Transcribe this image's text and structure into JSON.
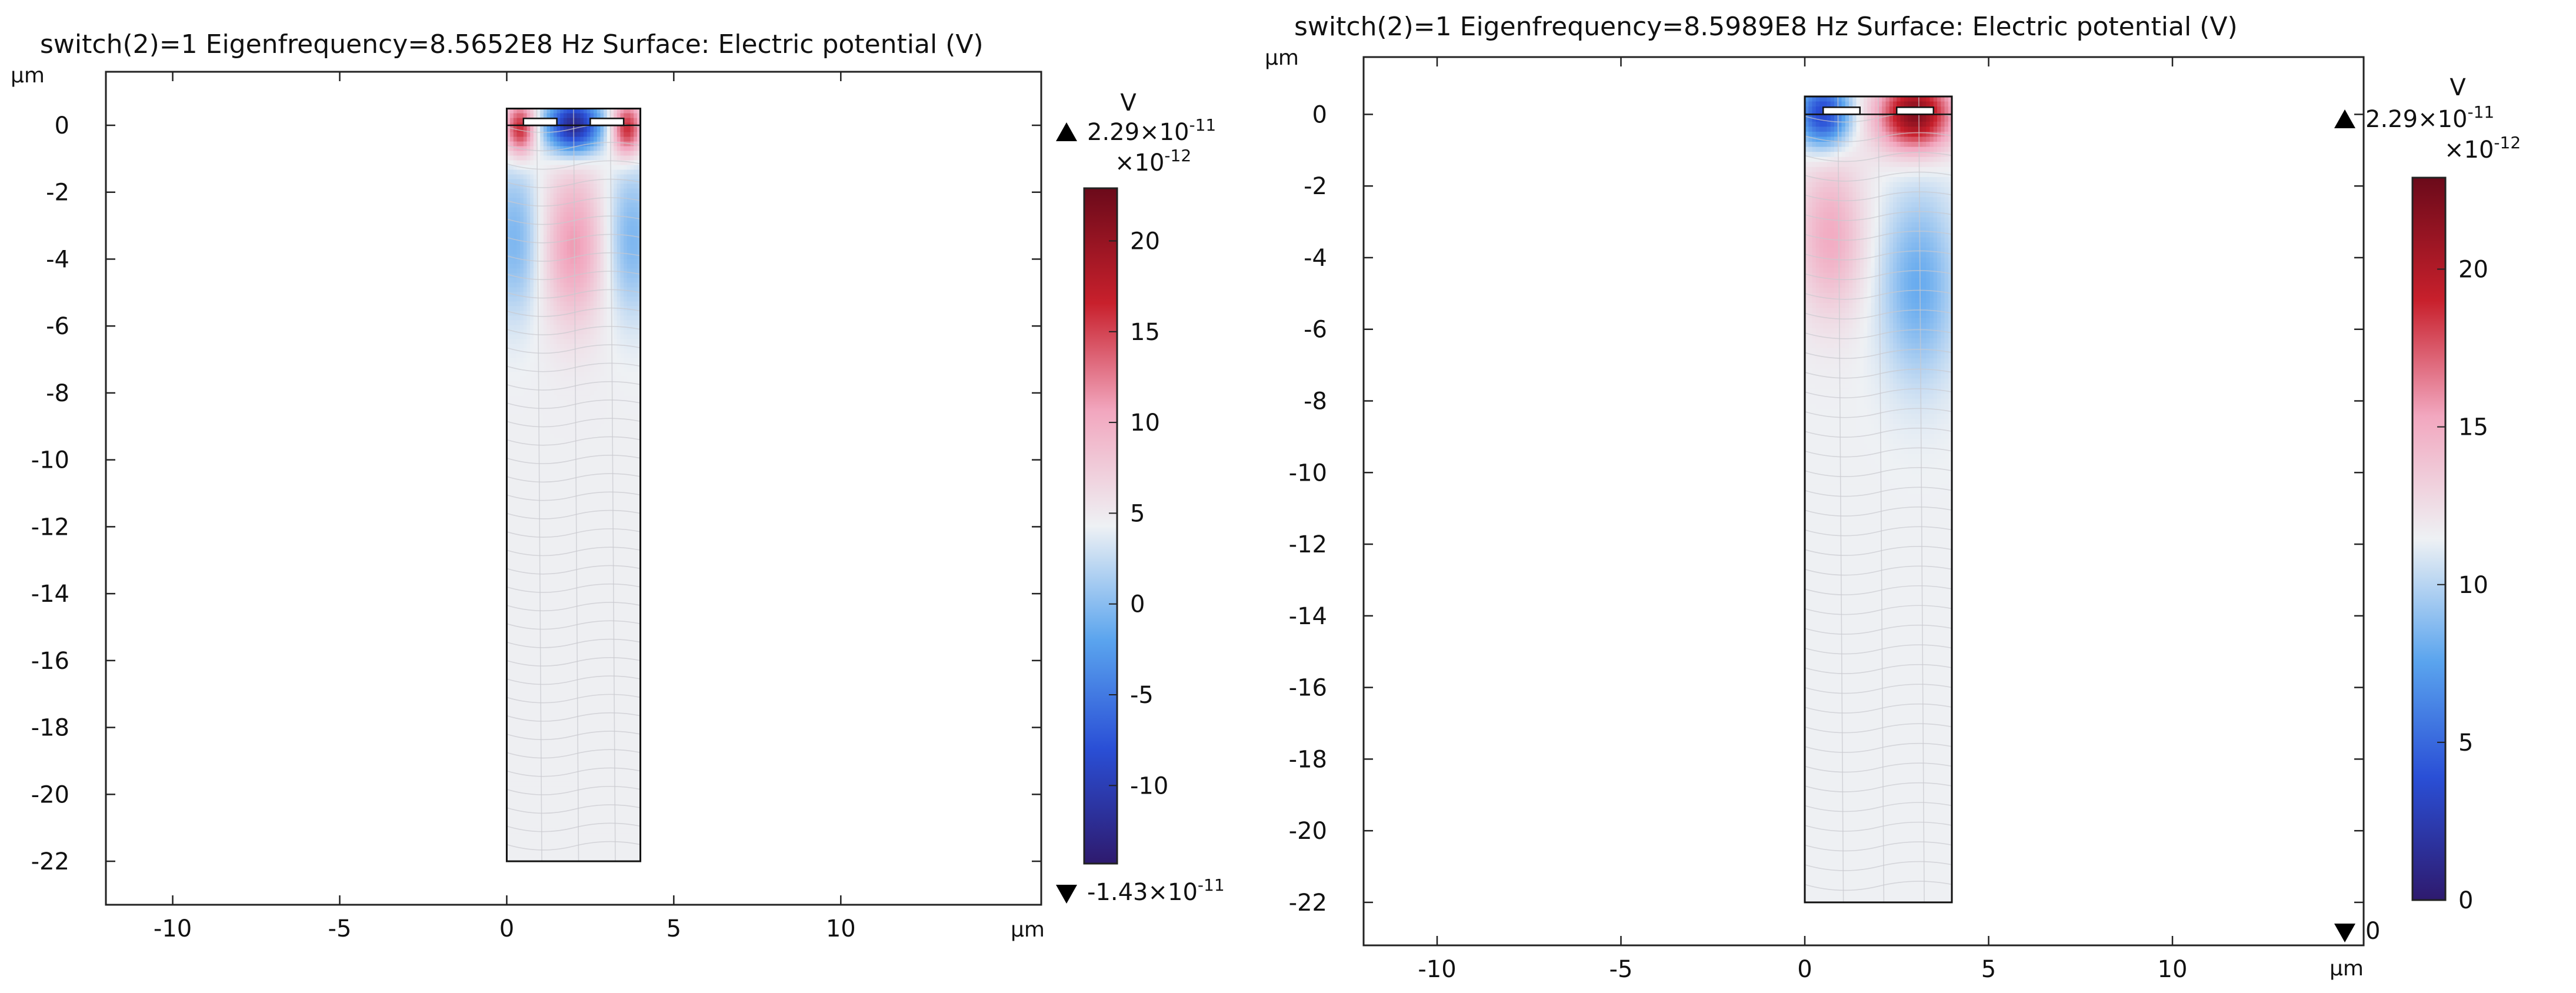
{
  "chart_data": [
    {
      "type": "heatmap",
      "title": "switch(2)=1 Eigenfrequency=8.5652E8 Hz  Surface: Electric potential (V)",
      "unit": "µm",
      "xlim": [
        -12,
        16
      ],
      "ylim": [
        -23.3,
        1.6
      ],
      "x_ticks": [
        -10,
        -5,
        0,
        5,
        10
      ],
      "y_ticks": [
        0,
        -2,
        -4,
        -6,
        -8,
        -10,
        -12,
        -14,
        -16,
        -18,
        -20,
        -22
      ],
      "domain_box": {
        "x": [
          0,
          4
        ],
        "y": [
          -22,
          0.5
        ]
      },
      "electrodes": [
        {
          "x": [
            0.5,
            1.5
          ],
          "y": 0.1
        },
        {
          "x": [
            2.5,
            3.5
          ],
          "y": 0.1
        }
      ],
      "field": {
        "background": 4.5,
        "blobs": [
          {
            "cx": 0.4,
            "cy": -0.1,
            "sx": 0.45,
            "sy": 0.8,
            "amp": 12.5
          },
          {
            "cx": 3.6,
            "cy": -0.1,
            "sx": 0.45,
            "sy": 0.8,
            "amp": 12.5
          },
          {
            "cx": 2.0,
            "cy": 0.0,
            "sx": 0.8,
            "sy": 0.8,
            "amp": -17.5
          },
          {
            "cx": 0.25,
            "cy": -3.4,
            "sx": 0.75,
            "sy": 2.3,
            "amp": -5.0
          },
          {
            "cx": 3.75,
            "cy": -3.4,
            "sx": 0.75,
            "sy": 2.3,
            "amp": -5.0
          },
          {
            "cx": 2.0,
            "cy": -3.6,
            "sx": 0.9,
            "sy": 2.3,
            "amp": 6.5
          }
        ]
      },
      "colorbar": {
        "unit": "V",
        "multiplier": "×10",
        "multiplier_exp": "-12",
        "ticks": [
          20,
          15,
          10,
          5,
          0,
          -5,
          -10
        ],
        "range": [
          -14.3,
          22.9
        ],
        "max_label": "2.29×10",
        "max_exp": "-11",
        "min_label": "-1.43×10",
        "min_exp": "-11",
        "stops": [
          "#2e1a6e",
          "#2a4fd6",
          "#5aa4ee",
          "#eef1f4",
          "#f2a7bf",
          "#c8202c",
          "#6b0a1a"
        ]
      }
    },
    {
      "type": "heatmap",
      "title": "switch(2)=1 Eigenfrequency=8.5989E8 Hz  Surface: Electric potential (V)",
      "unit": "µm",
      "xlim": [
        -12,
        15.2
      ],
      "ylim": [
        -23.2,
        1.6
      ],
      "x_ticks": [
        -10,
        -5,
        0,
        5,
        10
      ],
      "y_ticks": [
        0,
        -2,
        -4,
        -6,
        -8,
        -10,
        -12,
        -14,
        -16,
        -18,
        -20,
        -22
      ],
      "domain_box": {
        "x": [
          0,
          4
        ],
        "y": [
          -22,
          0.5
        ]
      },
      "electrodes": [
        {
          "x": [
            0.5,
            1.5
          ],
          "y": 0.1
        },
        {
          "x": [
            2.5,
            3.5
          ],
          "y": 0.1
        }
      ],
      "field": {
        "background": 11.5,
        "blobs": [
          {
            "cx": 0.5,
            "cy": 0.0,
            "sx": 0.7,
            "sy": 0.9,
            "amp": -8.5
          },
          {
            "cx": 3.0,
            "cy": 0.0,
            "sx": 1.0,
            "sy": 1.0,
            "amp": 10.5
          },
          {
            "cx": 0.7,
            "cy": -3.4,
            "sx": 0.9,
            "sy": 2.2,
            "amp": 3.5
          },
          {
            "cx": 3.1,
            "cy": -4.8,
            "sx": 1.0,
            "sy": 2.6,
            "amp": -3.5
          }
        ]
      },
      "colorbar": {
        "unit": "V",
        "multiplier": "×10",
        "multiplier_exp": "-12",
        "ticks": [
          20,
          15,
          10,
          5,
          0
        ],
        "range": [
          0,
          22.9
        ],
        "max_label": "2.29×10",
        "max_exp": "-11",
        "min_label": "0",
        "min_exp": "",
        "stops": [
          "#2e1a6e",
          "#2a4fd6",
          "#5aa4ee",
          "#eef1f4",
          "#f2a7bf",
          "#c8202c",
          "#6b0a1a"
        ]
      }
    }
  ]
}
